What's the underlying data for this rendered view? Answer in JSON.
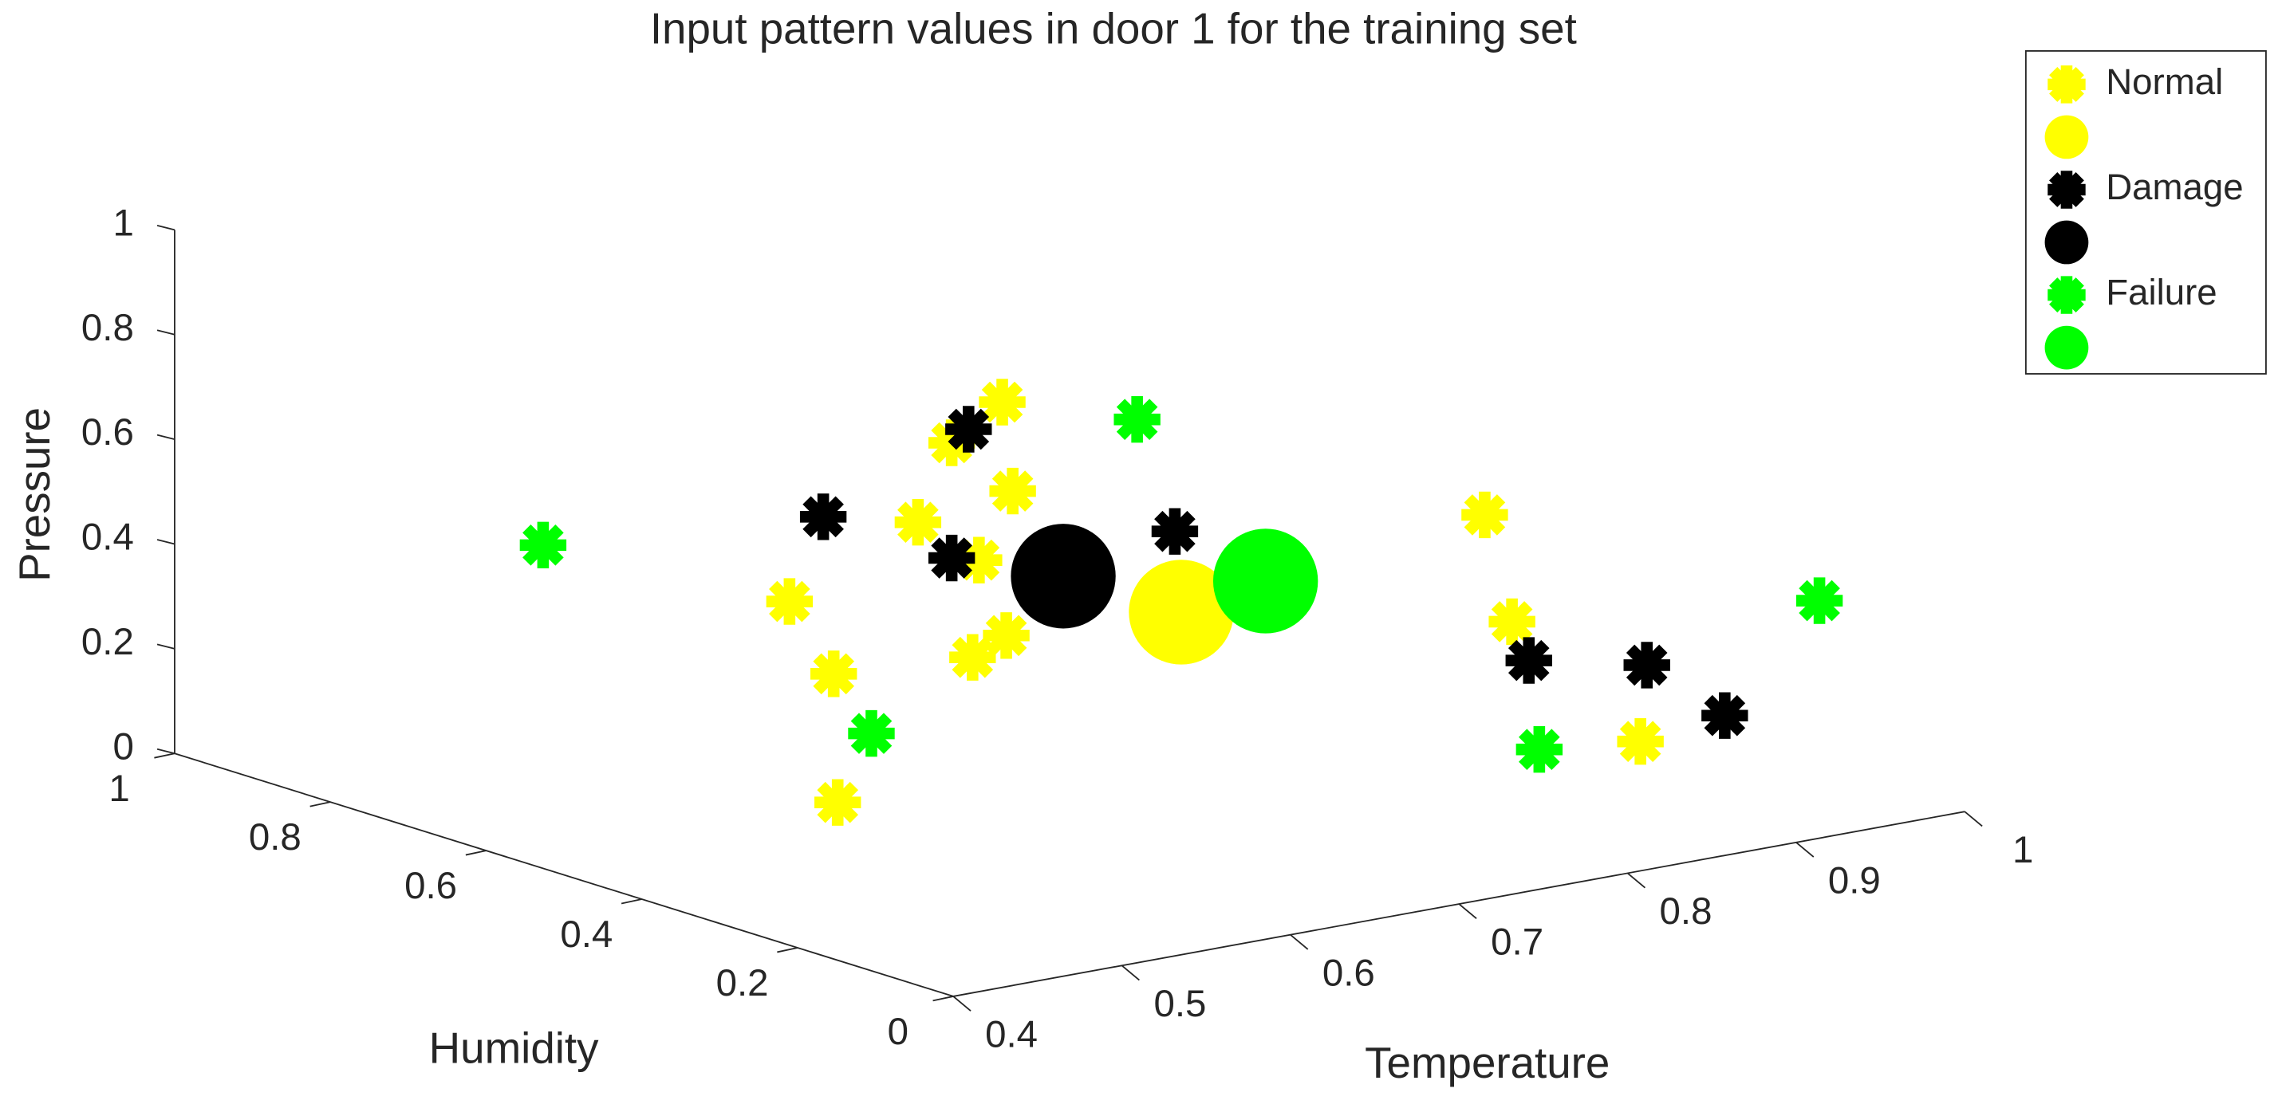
{
  "chart_data": {
    "type": "scatter3d",
    "title": "Input pattern values in door 1 for the training set",
    "x_label": "Temperature",
    "y_label": "Humidity",
    "z_label": "Pressure",
    "xlim": [
      0.4,
      1
    ],
    "xticks": [
      0.4,
      0.5,
      0.6,
      0.7,
      0.8,
      0.9,
      1
    ],
    "ylim": [
      0,
      1
    ],
    "yticks": [
      0,
      0.2,
      0.4,
      0.6,
      0.8,
      1
    ],
    "zlim": [
      0,
      1
    ],
    "zticks": [
      0,
      0.2,
      0.4,
      0.6,
      0.8,
      1
    ],
    "legend": "top-right",
    "series": [
      {
        "name": "Normal",
        "color": "#ffff00",
        "marker": "*",
        "x": [
          0.66,
          0.63,
          0.62,
          0.61,
          0.6,
          0.58,
          0.57,
          0.55,
          0.56,
          0.47,
          0.9,
          0.87,
          0.9
        ],
        "y": [
          0.5,
          0.5,
          0.4,
          0.5,
          0.4,
          0.6,
          0.3,
          0.3,
          0.5,
          0.3,
          0.4,
          0.3,
          0.2
        ],
        "z": [
          0.75,
          0.69,
          0.65,
          0.55,
          0.53,
          0.37,
          0.45,
          0.42,
          0.29,
          0.19,
          0.44,
          0.3,
          0.1
        ]
      },
      {
        "color": "#ffff00",
        "marker": "o",
        "x": [
          0.72
        ],
        "y": [
          0.4
        ],
        "z": [
          0.36
        ]
      },
      {
        "name": "Damage",
        "color": "#000000",
        "marker": "*",
        "x": [
          0.64,
          0.6,
          0.63,
          0.67,
          0.88,
          0.95,
          0.95
        ],
        "y": [
          0.5,
          0.6,
          0.5,
          0.3,
          0.3,
          0.3,
          0.2
        ],
        "z": [
          0.71,
          0.52,
          0.47,
          0.59,
          0.22,
          0.17,
          0.12
        ]
      },
      {
        "color": "#000000",
        "marker": "o",
        "x": [
          0.65
        ],
        "y": [
          0.4
        ],
        "z": [
          0.47
        ]
      },
      {
        "name": "Failure",
        "color": "#00ff00",
        "marker": "*",
        "x": [
          0.74,
          0.48,
          0.49,
          0.84,
          0.96
        ],
        "y": [
          0.5,
          0.7,
          0.3,
          0.2,
          0.1
        ],
        "z": [
          0.67,
          0.49,
          0.31,
          0.12,
          0.38
        ]
      },
      {
        "color": "#00ff00",
        "marker": "o",
        "x": [
          0.77
        ],
        "y": [
          0.4
        ],
        "z": [
          0.39
        ]
      }
    ]
  }
}
